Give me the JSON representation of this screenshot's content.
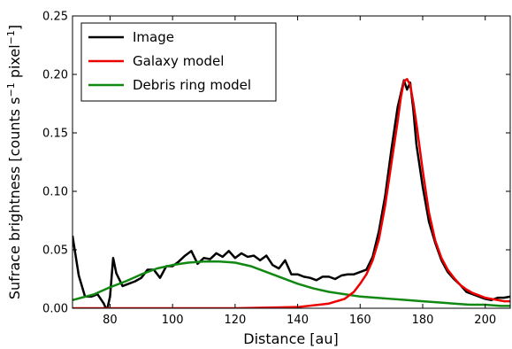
{
  "chart_data": {
    "type": "line",
    "xlabel": "Distance [au]",
    "ylabel": "Sufrace brightness [counts s",
    "ylabel_sup1": "−1",
    "ylabel_mid": " pixel",
    "ylabel_sup2": "−1",
    "ylabel_end": "]",
    "xlim": [
      68,
      208
    ],
    "ylim": [
      0,
      0.25
    ],
    "x_ticks": [
      80,
      100,
      120,
      140,
      160,
      180,
      200
    ],
    "y_ticks": [
      0.0,
      0.05,
      0.1,
      0.15,
      0.2,
      0.25
    ],
    "x_tick_labels": [
      "80",
      "100",
      "120",
      "140",
      "160",
      "180",
      "200"
    ],
    "y_tick_labels": [
      "0.00",
      "0.05",
      "0.10",
      "0.15",
      "0.20",
      "0.25"
    ],
    "legend_position": "top-left",
    "grid": false,
    "series": [
      {
        "name": "Image",
        "color": "#000000",
        "x": [
          68,
          70,
          72,
          74,
          76,
          78,
          79,
          80,
          81,
          82,
          84,
          86,
          88,
          90,
          92,
          94,
          96,
          98,
          100,
          102,
          104,
          106,
          108,
          110,
          112,
          114,
          116,
          118,
          120,
          122,
          124,
          126,
          128,
          130,
          132,
          134,
          136,
          138,
          140,
          142,
          144,
          146,
          148,
          150,
          152,
          154,
          156,
          158,
          160,
          162,
          164,
          166,
          168,
          170,
          172,
          174,
          175,
          176,
          177,
          178,
          180,
          182,
          184,
          186,
          188,
          190,
          192,
          194,
          196,
          198,
          200,
          202,
          204,
          206,
          208
        ],
        "y": [
          0.062,
          0.028,
          0.01,
          0.01,
          0.012,
          0.004,
          -0.002,
          0.01,
          0.043,
          0.03,
          0.019,
          0.021,
          0.023,
          0.026,
          0.033,
          0.033,
          0.026,
          0.036,
          0.036,
          0.04,
          0.045,
          0.049,
          0.038,
          0.043,
          0.042,
          0.047,
          0.044,
          0.049,
          0.043,
          0.047,
          0.044,
          0.045,
          0.041,
          0.045,
          0.037,
          0.034,
          0.041,
          0.029,
          0.029,
          0.027,
          0.026,
          0.024,
          0.027,
          0.027,
          0.025,
          0.028,
          0.029,
          0.029,
          0.031,
          0.033,
          0.044,
          0.066,
          0.096,
          0.136,
          0.172,
          0.195,
          0.187,
          0.193,
          0.17,
          0.14,
          0.104,
          0.074,
          0.056,
          0.041,
          0.031,
          0.025,
          0.02,
          0.014,
          0.012,
          0.01,
          0.008,
          0.007,
          0.009,
          0.009,
          0.01
        ]
      },
      {
        "name": "Galaxy model",
        "color": "#ee0000",
        "x": [
          68,
          120,
          140,
          150,
          155,
          158,
          160,
          162,
          164,
          166,
          168,
          170,
          172,
          173,
          174,
          175,
          176,
          177,
          178,
          180,
          182,
          184,
          186,
          188,
          190,
          192,
          194,
          196,
          198,
          200,
          202,
          204,
          206,
          208
        ],
        "y": [
          0.0,
          0.0,
          0.001,
          0.004,
          0.008,
          0.014,
          0.021,
          0.029,
          0.041,
          0.059,
          0.088,
          0.124,
          0.16,
          0.18,
          0.194,
          0.196,
          0.191,
          0.176,
          0.158,
          0.118,
          0.082,
          0.058,
          0.043,
          0.033,
          0.026,
          0.02,
          0.016,
          0.013,
          0.011,
          0.009,
          0.008,
          0.007,
          0.006,
          0.006
        ]
      },
      {
        "name": "Debris ring model",
        "color": "#118811",
        "x": [
          68,
          75,
          80,
          85,
          90,
          95,
          100,
          105,
          110,
          115,
          120,
          125,
          130,
          135,
          140,
          145,
          150,
          155,
          160,
          165,
          170,
          175,
          180,
          185,
          190,
          195,
          200,
          205,
          208
        ],
        "y": [
          0.007,
          0.012,
          0.018,
          0.023,
          0.029,
          0.034,
          0.037,
          0.039,
          0.04,
          0.04,
          0.039,
          0.036,
          0.031,
          0.026,
          0.021,
          0.017,
          0.014,
          0.012,
          0.01,
          0.009,
          0.008,
          0.007,
          0.006,
          0.005,
          0.004,
          0.003,
          0.003,
          0.002,
          0.002
        ]
      }
    ]
  }
}
